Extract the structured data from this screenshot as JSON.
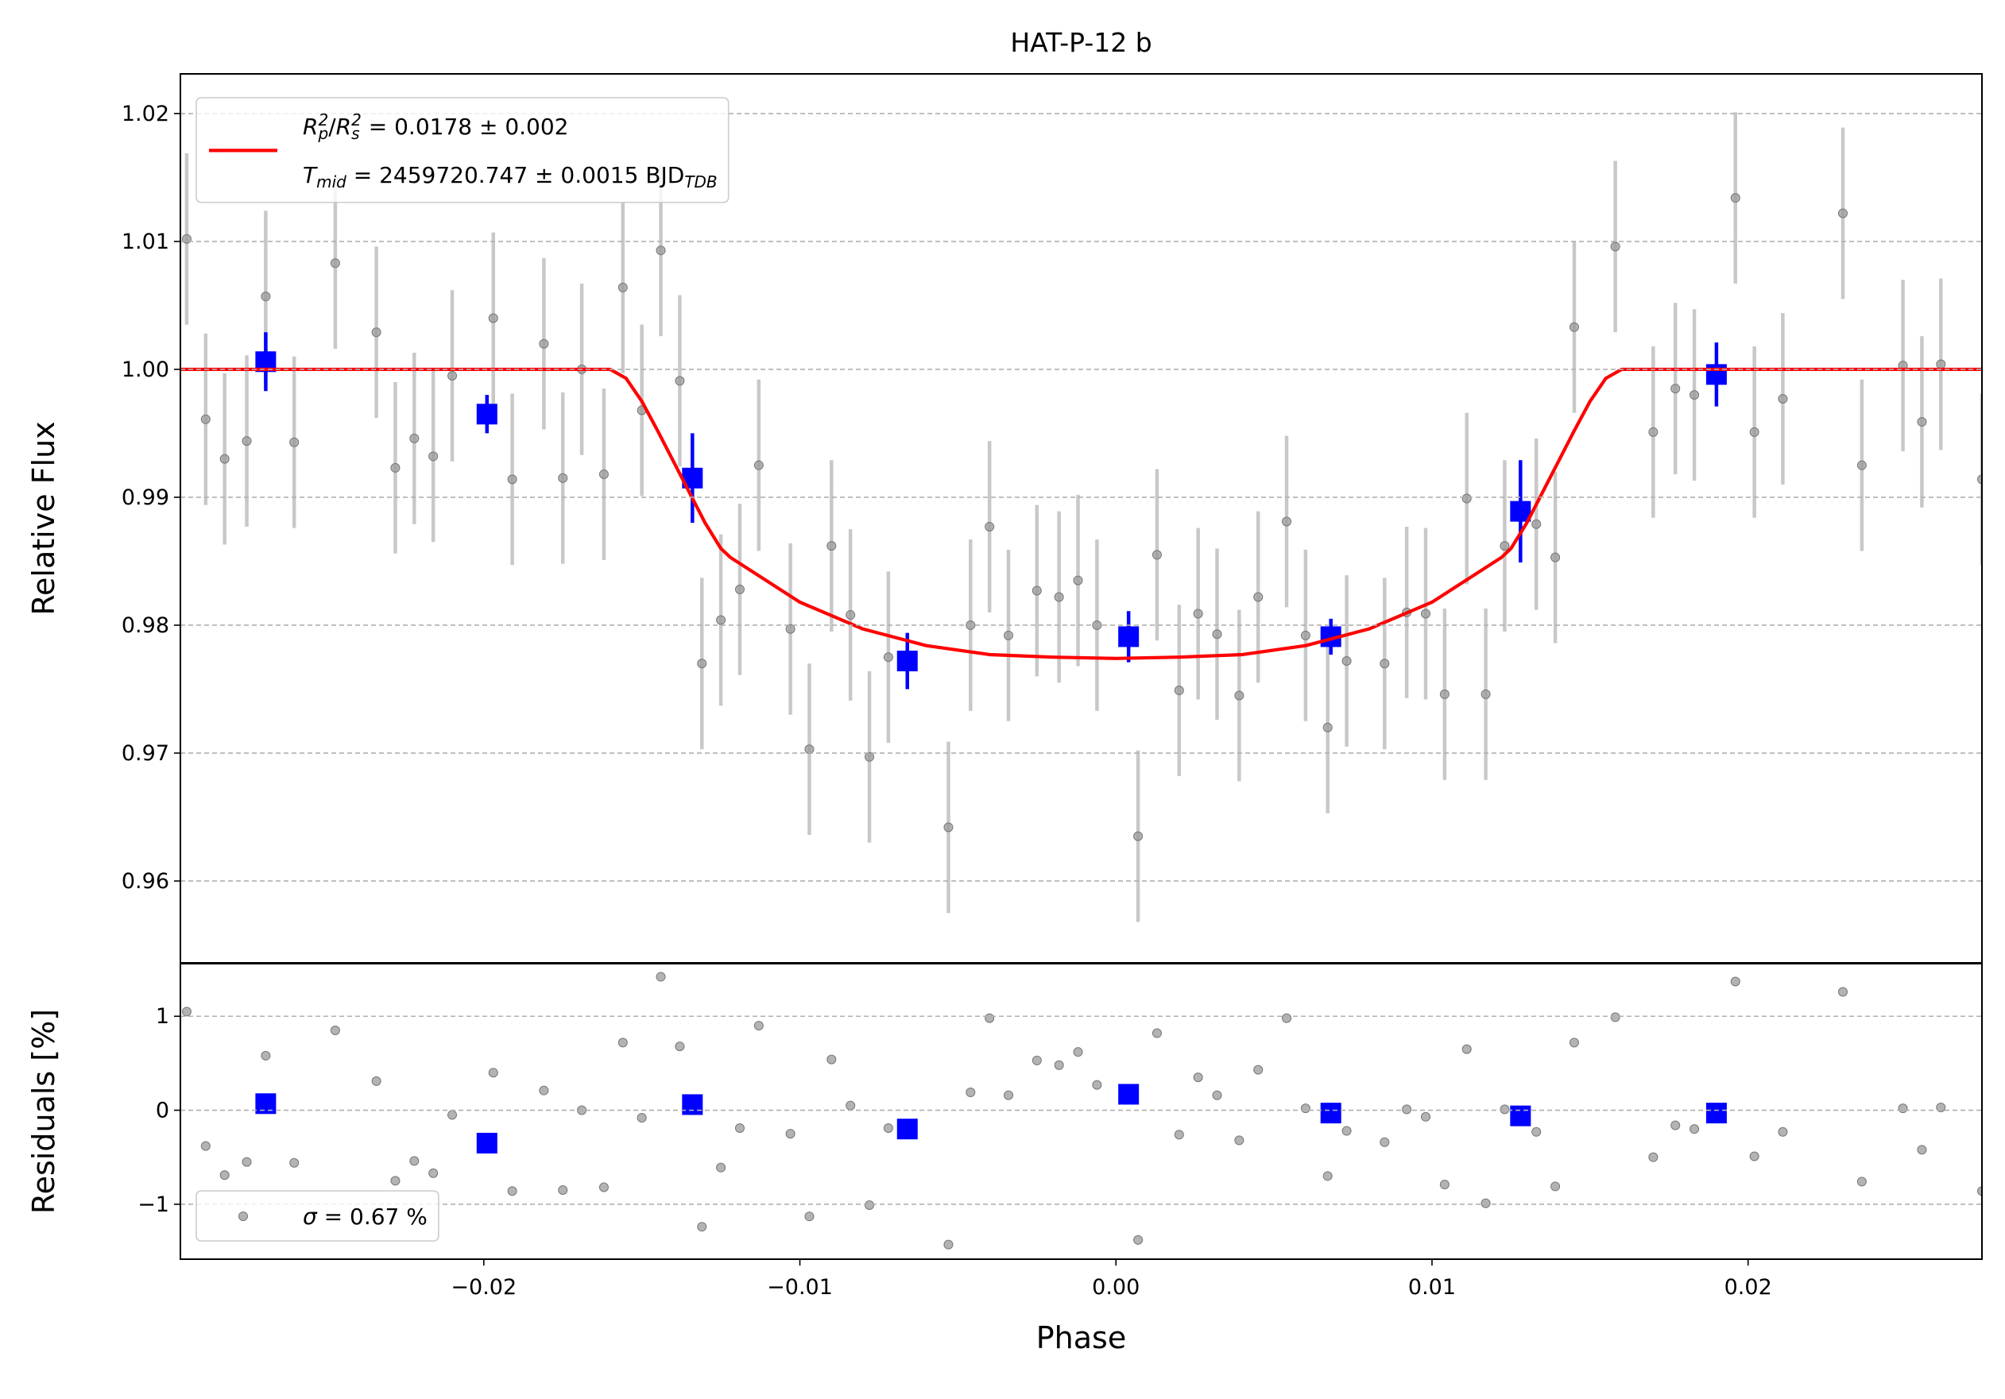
{
  "chart_data": [
    {
      "type": "scatter",
      "title": "HAT-P-12 b",
      "ylabel": "Relative Flux",
      "xlim": [
        -0.0296,
        0.0274
      ],
      "ylim": [
        0.9536,
        1.0231
      ],
      "yticks": [
        0.96,
        0.97,
        0.98,
        0.99,
        {
          "value": 1,
          "label": "1.00"
        },
        1.01,
        1.02
      ],
      "grid": true,
      "legend_loc": "upper left",
      "series": [
        {
          "x": [
            -0.0294,
            -0.0288,
            -0.0282,
            -0.0275,
            -0.0269,
            -0.026,
            -0.0247,
            -0.0234,
            -0.0228,
            -0.0222,
            -0.0216,
            -0.021,
            -0.0197,
            -0.0191,
            -0.0181,
            -0.0175,
            -0.0169,
            -0.0162,
            -0.0156,
            -0.015,
            -0.0144,
            -0.0138,
            -0.0131,
            -0.0125,
            -0.0119,
            -0.0113,
            -0.0103,
            -0.0097,
            -0.009,
            -0.0084,
            -0.0078,
            -0.0072,
            -0.0053,
            -0.0046,
            -0.004,
            -0.0034,
            -0.0025,
            -0.0018,
            -0.0012,
            -0.0006,
            0.0007,
            0.0013,
            0.002,
            0.0026,
            0.0032,
            0.0039,
            0.0045,
            0.0054,
            0.006,
            0.0067,
            0.0073,
            0.0085,
            0.0092,
            0.0098,
            0.0104,
            0.0111,
            0.0117,
            0.0123,
            0.0133,
            0.0139,
            0.0145,
            0.0158,
            0.017,
            0.0177,
            0.0183,
            0.0196,
            0.0202,
            0.0211,
            0.023,
            0.0236,
            0.0249,
            0.0255,
            0.0261,
            0.0274
          ],
          "values": [
            1.0102,
            0.9961,
            0.993,
            0.9944,
            1.0057,
            0.9943,
            1.0083,
            1.0029,
            0.9923,
            0.9946,
            0.9932,
            0.9995,
            1.004,
            0.9914,
            1.002,
            0.9915,
            1.0,
            0.9918,
            1.0064,
            0.9968,
            1.0093,
            0.9991,
            0.977,
            0.9804,
            0.9828,
            0.9925,
            0.9797,
            0.9703,
            0.9862,
            0.9808,
            0.9697,
            0.9775,
            0.9642,
            0.98,
            0.9877,
            0.9792,
            0.9827,
            0.9822,
            0.9835,
            0.98,
            0.9635,
            0.9855,
            0.9749,
            0.9809,
            0.9793,
            0.9745,
            0.9822,
            0.9881,
            0.9792,
            0.972,
            0.9772,
            0.977,
            0.981,
            0.9809,
            0.9746,
            0.9899,
            0.9746,
            0.9862,
            0.9879,
            0.9853,
            1.0033,
            1.0096,
            0.9951,
            0.9985,
            0.998,
            1.0134,
            0.9951,
            0.9977,
            1.0122,
            0.9925,
            1.0003,
            0.9959,
            1.0004,
            0.9914
          ],
          "error": 0.0067,
          "color": "#999999",
          "error_color": "#c8c8c8",
          "marker": "circle"
        },
        {
          "x": [
            -0.0269,
            -0.0199,
            -0.0134,
            -0.0066,
            0.0004,
            0.0068,
            0.0128,
            0.019
          ],
          "values": [
            1.0006,
            0.9965,
            0.9915,
            0.9772,
            0.9791,
            0.9791,
            0.9889,
            0.9996
          ],
          "errors": [
            0.0023,
            0.0015,
            0.0035,
            0.0022,
            0.002,
            0.0014,
            0.004,
            0.0025
          ],
          "color": "#0000ff",
          "marker": "square"
        },
        {
          "name": [
            [
              {
                "text": "R",
                "style": "italic"
              },
              {
                "text": "p",
                "style": "sub"
              },
              {
                "text": "2",
                "style": "sup"
              },
              {
                "text": "/",
                "style": "normal"
              },
              {
                "text": "R",
                "style": "italic"
              },
              {
                "text": "s",
                "style": "sub"
              },
              {
                "text": "2",
                "style": "sup"
              },
              {
                "text": " = 0.0178 ± 0.002",
                "style": "normal"
              }
            ],
            [
              {
                "text": "T",
                "style": "italic"
              },
              {
                "text": "mid",
                "style": "sub"
              },
              {
                "text": " = 2459720.747 ± 0.0015 BJD",
                "style": "normal"
              },
              {
                "text": "TDB",
                "style": "sub"
              }
            ]
          ],
          "kind": "line",
          "color": "#ff0000",
          "x": [
            -0.0296,
            -0.016,
            -0.0155,
            -0.015,
            -0.0145,
            -0.014,
            -0.0135,
            -0.013,
            -0.0125,
            -0.0122,
            -0.01,
            -0.008,
            -0.006,
            -0.004,
            -0.002,
            0,
            0.002,
            0.004,
            0.006,
            0.008,
            0.01,
            0.0122,
            0.0125,
            0.013,
            0.0135,
            0.014,
            0.0145,
            0.015,
            0.0155,
            0.016,
            0.0274
          ],
          "values": [
            1,
            1,
            0.9993,
            0.9975,
            0.9952,
            0.9928,
            0.9904,
            0.988,
            0.986,
            0.9853,
            0.9818,
            0.9797,
            0.9784,
            0.9777,
            0.9775,
            0.9774,
            0.9775,
            0.9777,
            0.9784,
            0.9797,
            0.9818,
            0.9853,
            0.986,
            0.988,
            0.9904,
            0.9928,
            0.9952,
            0.9975,
            0.9993,
            1,
            1
          ]
        }
      ]
    },
    {
      "type": "scatter",
      "ylabel": "Residuals [%]",
      "xlabel": "Phase",
      "xlim": [
        -0.0296,
        0.0274
      ],
      "xticks": [
        {
          "value": -0.02,
          "label": "−0.02"
        },
        {
          "value": -0.01,
          "label": "−0.01"
        },
        {
          "value": 0,
          "label": "0.00"
        },
        0.01,
        0.02
      ],
      "ylim": [
        -1.585,
        1.56
      ],
      "yticks": [
        {
          "value": -1,
          "label": "−1"
        },
        0,
        1
      ],
      "grid": true,
      "legend_loc": "lower left",
      "series": [
        {
          "name": [
            [
              {
                "text": "σ",
                "style": "italic"
              },
              {
                "text": " = 0.67 %",
                "style": "normal"
              }
            ]
          ],
          "x": [
            -0.0294,
            -0.0288,
            -0.0282,
            -0.0275,
            -0.0269,
            -0.026,
            -0.0247,
            -0.0234,
            -0.0228,
            -0.0222,
            -0.0216,
            -0.021,
            -0.0197,
            -0.0191,
            -0.0181,
            -0.0175,
            -0.0169,
            -0.0162,
            -0.0156,
            -0.015,
            -0.0144,
            -0.0138,
            -0.0131,
            -0.0125,
            -0.0119,
            -0.0113,
            -0.0103,
            -0.0097,
            -0.009,
            -0.0084,
            -0.0078,
            -0.0072,
            -0.0053,
            -0.0046,
            -0.004,
            -0.0034,
            -0.0025,
            -0.0018,
            -0.0012,
            -0.0006,
            0.0007,
            0.0013,
            0.002,
            0.0026,
            0.0032,
            0.0039,
            0.0045,
            0.0054,
            0.006,
            0.0067,
            0.0073,
            0.0085,
            0.0092,
            0.0098,
            0.0104,
            0.0111,
            0.0117,
            0.0123,
            0.0133,
            0.0139,
            0.0145,
            0.0158,
            0.017,
            0.0177,
            0.0183,
            0.0196,
            0.0202,
            0.0211,
            0.023,
            0.0236,
            0.0249,
            0.0255,
            0.0261,
            0.0274
          ],
          "values": [
            1.05,
            -0.38,
            -0.69,
            -0.55,
            0.58,
            -0.56,
            0.85,
            0.31,
            -0.75,
            -0.54,
            -0.67,
            -0.05,
            0.4,
            -0.86,
            0.21,
            -0.85,
            0,
            -0.82,
            0.72,
            -0.08,
            1.42,
            0.68,
            -1.24,
            -0.61,
            -0.19,
            0.9,
            -0.25,
            -1.13,
            0.54,
            0.05,
            -1.01,
            -0.19,
            -1.43,
            0.19,
            0.98,
            0.16,
            0.53,
            0.48,
            0.62,
            0.27,
            -1.38,
            0.82,
            -0.26,
            0.35,
            0.16,
            -0.32,
            0.43,
            0.98,
            0.02,
            -0.7,
            -0.22,
            -0.34,
            0.01,
            -0.07,
            -0.79,
            0.65,
            -0.99,
            0.01,
            -0.23,
            -0.81,
            0.72,
            0.99,
            -0.5,
            -0.16,
            -0.2,
            1.37,
            -0.49,
            -0.23,
            1.26,
            -0.76,
            0.02,
            -0.42,
            0.03,
            -0.86
          ],
          "color": "#999999",
          "marker": "circle"
        },
        {
          "x": [
            -0.0269,
            -0.0199,
            -0.0134,
            -0.0066,
            0.0004,
            0.0068,
            0.0128,
            0.019
          ],
          "values": [
            0.07,
            -0.35,
            0.06,
            -0.2,
            0.17,
            -0.03,
            -0.06,
            -0.03
          ],
          "color": "#0000ff",
          "marker": "square"
        }
      ]
    }
  ]
}
